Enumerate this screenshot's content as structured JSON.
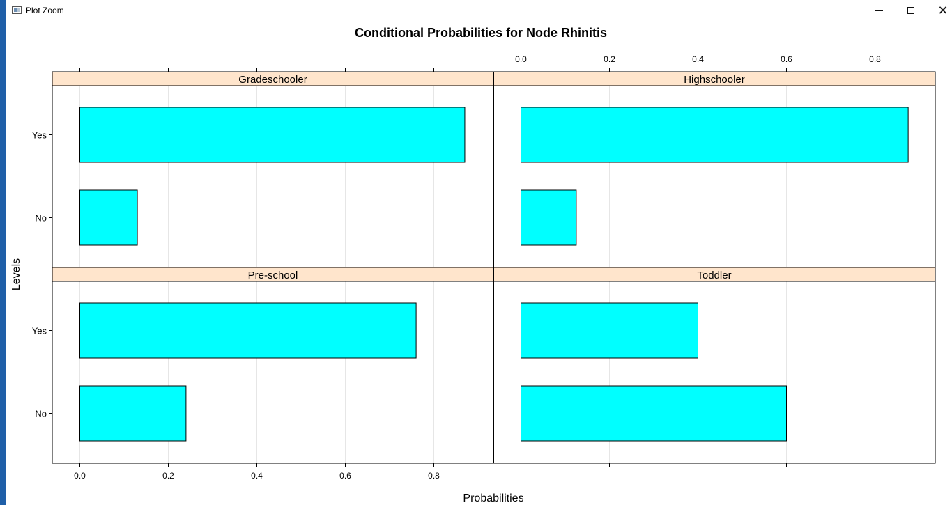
{
  "window": {
    "title": "Plot Zoom",
    "icon": "plot-zoom-app-icon",
    "controls": [
      "minimize-icon",
      "maximize-icon",
      "close-icon"
    ]
  },
  "chart_data": {
    "type": "bar",
    "orientation": "horizontal",
    "title": "Conditional Probabilities for Node Rhinitis",
    "xlabel": "Probabilities",
    "ylabel": "Levels",
    "xlim": [
      0,
      0.9
    ],
    "x_ticks": [
      "0.0",
      "0.2",
      "0.4",
      "0.6",
      "0.8"
    ],
    "categories": [
      "No",
      "Yes"
    ],
    "panels": [
      {
        "name": "Gradeschooler",
        "values": {
          "No": 0.13,
          "Yes": 0.87
        }
      },
      {
        "name": "Highschooler",
        "values": {
          "No": 0.125,
          "Yes": 0.875
        }
      },
      {
        "name": "Pre-school",
        "values": {
          "No": 0.24,
          "Yes": 0.76
        }
      },
      {
        "name": "Toddler",
        "values": {
          "No": 0.6,
          "Yes": 0.4
        }
      }
    ],
    "colors": {
      "bar_fill": "#00ffff",
      "strip_fill": "#ffe5cc",
      "grid": "#e6e6e6"
    },
    "grid": true,
    "legend": "none"
  }
}
